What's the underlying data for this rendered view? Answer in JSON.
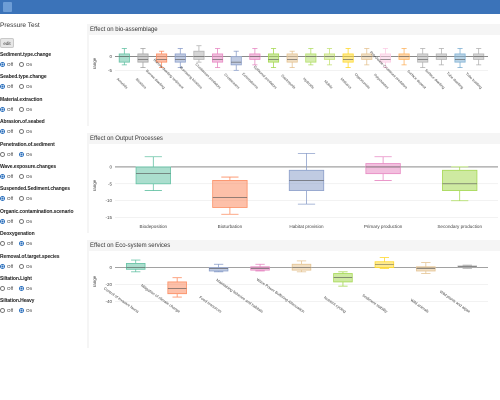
{
  "sidebar": {
    "title": "Pressure Test",
    "edit_label": "edit",
    "off_label": "Off",
    "on_label": "On",
    "pressures": [
      {
        "name": "Sediment.type.change",
        "value": "Off"
      },
      {
        "name": "Seabed.type.change",
        "value": "Off"
      },
      {
        "name": "Material.extraction",
        "value": "Off"
      },
      {
        "name": "Abrasion.of.seabed",
        "value": "Off"
      },
      {
        "name": "Penetration.of.sediment",
        "value": "On"
      },
      {
        "name": "Wave.exposure.changes",
        "value": "Off"
      },
      {
        "name": "Suspended.Sediment.changes",
        "value": "Off"
      },
      {
        "name": "Organic.contamination.scenario",
        "value": "Off"
      },
      {
        "name": "Deoxygenation",
        "value": "On"
      },
      {
        "name": "Removal.of.target.species",
        "value": "Off"
      },
      {
        "name": "Siltation.Light",
        "value": "On"
      },
      {
        "name": "Siltation.Heavy",
        "value": "On"
      }
    ]
  },
  "panels": [
    {
      "title": "Effect on bio-assemblage"
    },
    {
      "title": "Effect on Output Processes"
    },
    {
      "title": "Effect on Eco-system services"
    }
  ],
  "chart_data": [
    {
      "type": "box",
      "title": "Effect on bio-assemblage",
      "ylabel": "range",
      "yticks": [
        0,
        -5
      ],
      "ylim": [
        -10,
        5
      ],
      "categories": [
        "Annelids",
        "Bivalves",
        "Burrow dwelling",
        "Burrow dwelling sediment",
        "Burrowing bivalves",
        "Crustacean predators",
        "Crustaceans",
        "Echinoderms",
        "Epifaunal predators",
        "Gastropods",
        "Hydroids",
        "Mobile",
        "Molluscs",
        "Opportunists",
        "Polychaetes",
        "Polychaete-Crustacea predators",
        "Surface deposit",
        "Surface dwelling",
        "Tube dwelling",
        "Tube building"
      ],
      "colors": [
        "#66c2a5",
        "#a6a6a6",
        "#fc8d62",
        "#8da0cb",
        "#b3b3b3",
        "#e78ac3",
        "#8da0cb",
        "#e78ac3",
        "#a6d854",
        "#e5c494",
        "#b3de69",
        "#c6e27a",
        "#ffd92f",
        "#e5c494",
        "#fccde5",
        "#fdb462",
        "#b3b3b3",
        "#b3b3b3",
        "#80b1d3",
        "#b3b3b3"
      ],
      "boxes": [
        {
          "whisker_low": -3,
          "q1": -2,
          "median": 0,
          "q3": 1,
          "whisker_high": 3
        },
        {
          "whisker_low": -4,
          "q1": -2,
          "median": -1,
          "q3": 1,
          "whisker_high": 3
        },
        {
          "whisker_low": -4,
          "q1": -2,
          "median": -1,
          "q3": 1,
          "whisker_high": 2
        },
        {
          "whisker_low": -4,
          "q1": -2,
          "median": -1,
          "q3": 1,
          "whisker_high": 3
        },
        {
          "whisker_low": -2,
          "q1": -1,
          "median": 0,
          "q3": 2,
          "whisker_high": 4
        },
        {
          "whisker_low": -4,
          "q1": -2,
          "median": -1,
          "q3": 1,
          "whisker_high": 3
        },
        {
          "whisker_low": -5,
          "q1": -3,
          "median": -2,
          "q3": 0,
          "whisker_high": 2
        },
        {
          "whisker_low": -3,
          "q1": -1,
          "median": 0,
          "q3": 1,
          "whisker_high": 3
        },
        {
          "whisker_low": -4,
          "q1": -2,
          "median": -1,
          "q3": 1,
          "whisker_high": 3
        },
        {
          "whisker_low": -4,
          "q1": -2,
          "median": -1,
          "q3": 1,
          "whisker_high": 2
        },
        {
          "whisker_low": -3,
          "q1": -2,
          "median": 0,
          "q3": 1,
          "whisker_high": 3
        },
        {
          "whisker_low": -3,
          "q1": -1,
          "median": 0,
          "q3": 1,
          "whisker_high": 3
        },
        {
          "whisker_low": -4,
          "q1": -2,
          "median": -1,
          "q3": 1,
          "whisker_high": 3
        },
        {
          "whisker_low": -3,
          "q1": -1,
          "median": 0,
          "q3": 1,
          "whisker_high": 3
        },
        {
          "whisker_low": -4,
          "q1": -2,
          "median": -1,
          "q3": 1,
          "whisker_high": 3
        },
        {
          "whisker_low": -3,
          "q1": -1,
          "median": 0,
          "q3": 1,
          "whisker_high": 3
        },
        {
          "whisker_low": -4,
          "q1": -2,
          "median": -1,
          "q3": 1,
          "whisker_high": 3
        },
        {
          "whisker_low": -3,
          "q1": -1,
          "median": 0,
          "q3": 1,
          "whisker_high": 3
        },
        {
          "whisker_low": -4,
          "q1": -2,
          "median": -1,
          "q3": 1,
          "whisker_high": 3
        },
        {
          "whisker_low": -3,
          "q1": -1,
          "median": 0,
          "q3": 1,
          "whisker_high": 3
        }
      ]
    },
    {
      "type": "box",
      "title": "Effect on Output Processes",
      "ylabel": "range",
      "yticks": [
        0,
        -5,
        -10,
        -15
      ],
      "ylim": [
        -16,
        5
      ],
      "categories": [
        "Biodeposition",
        "Bioturbation",
        "Habitat provision",
        "Primary production",
        "Secondary production"
      ],
      "colors": [
        "#66c2a5",
        "#fc8d62",
        "#8da0cb",
        "#e78ac3",
        "#a6d854"
      ],
      "boxes": [
        {
          "whisker_low": -7,
          "q1": -5,
          "median": -2,
          "q3": 0,
          "whisker_high": 3
        },
        {
          "whisker_low": -14,
          "q1": -12,
          "median": -9,
          "q3": -4,
          "whisker_high": -3
        },
        {
          "whisker_low": -11,
          "q1": -7,
          "median": -4,
          "q3": -1,
          "whisker_high": 4
        },
        {
          "whisker_low": -4,
          "q1": -2,
          "median": 0,
          "q3": 1,
          "whisker_high": 3
        },
        {
          "whisker_low": -10,
          "q1": -7,
          "median": -5,
          "q3": -1,
          "whisker_high": 0
        }
      ]
    },
    {
      "type": "box",
      "title": "Effect on Eco-system services",
      "ylabel": "range",
      "yticks": [
        0,
        -20,
        -40
      ],
      "ylim": [
        -48,
        15
      ],
      "categories": [
        "Control of invasive fauna",
        "Mitigation of climate change",
        "Food resources",
        "Maintaining fisheries and habitats",
        "Wave Power Buffering Attenuation",
        "Nutrient cycling",
        "Sediment stability",
        "Wild animals",
        "Wild plants and algae"
      ],
      "colors": [
        "#66c2a5",
        "#fc8d62",
        "#8da0cb",
        "#e78ac3",
        "#e5c494",
        "#a6d854",
        "#ffd92f",
        "#e5c494",
        "#b3b3b3"
      ],
      "boxes": [
        {
          "whisker_low": -5,
          "q1": -2,
          "median": 0,
          "q3": 5,
          "whisker_high": 9
        },
        {
          "whisker_low": -35,
          "q1": -31,
          "median": -25,
          "q3": -17,
          "whisker_high": -12
        },
        {
          "whisker_low": -5,
          "q1": -4,
          "median": -1,
          "q3": 0,
          "whisker_high": 4
        },
        {
          "whisker_low": -4,
          "q1": -3,
          "median": -1,
          "q3": 1,
          "whisker_high": 4
        },
        {
          "whisker_low": -5,
          "q1": -3,
          "median": 0,
          "q3": 4,
          "whisker_high": 8
        },
        {
          "whisker_low": -22,
          "q1": -17,
          "median": -12,
          "q3": -7,
          "whisker_high": -5
        },
        {
          "whisker_low": -1,
          "q1": 0,
          "median": 4,
          "q3": 7,
          "whisker_high": 12
        },
        {
          "whisker_low": -7,
          "q1": -4,
          "median": -1,
          "q3": 1,
          "whisker_high": 6
        },
        {
          "whisker_low": -1,
          "q1": 0,
          "median": 1,
          "q3": 2,
          "whisker_high": 3
        }
      ]
    }
  ]
}
